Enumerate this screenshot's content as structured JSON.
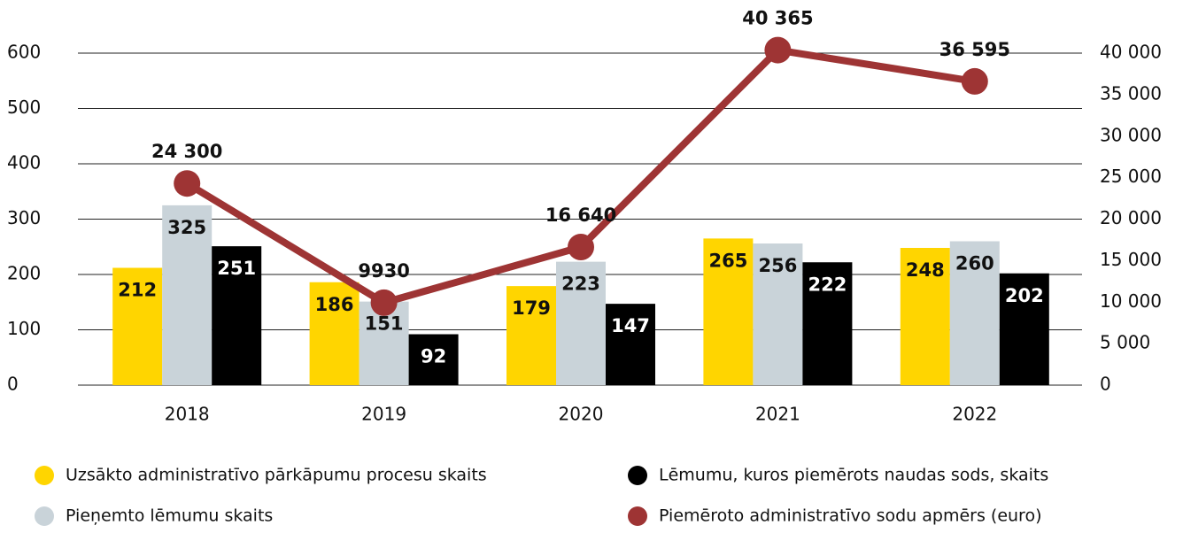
{
  "chart_data": {
    "type": "bar",
    "categories": [
      "2018",
      "2019",
      "2020",
      "2021",
      "2022"
    ],
    "series": [
      {
        "name": "Uzsākto administratīvo pārkāpumu procesu skaits",
        "color": "#ffd500",
        "type": "bar",
        "values": [
          212,
          186,
          179,
          265,
          248
        ]
      },
      {
        "name": "Pieņemto lēmumu skaits",
        "color": "#c9d3d9",
        "type": "bar",
        "values": [
          325,
          151,
          223,
          256,
          260
        ]
      },
      {
        "name": "Lēmumu, kuros piemērots naudas sods, skaits",
        "color": "#000000",
        "type": "bar",
        "values": [
          251,
          92,
          147,
          222,
          202
        ]
      },
      {
        "name": "Piemēroto administratīvo sodu apmērs (euro)",
        "color": "#9e3434",
        "type": "line",
        "axis": "y2",
        "values": [
          24300,
          9930,
          16640,
          40365,
          36595
        ],
        "value_labels": [
          "24 300",
          "9930",
          "16 640",
          "40 365",
          "36 595"
        ]
      }
    ],
    "ylim": [
      0,
      600
    ],
    "yticks": [
      0,
      100,
      200,
      300,
      400,
      500,
      600
    ],
    "y2lim": [
      0,
      40000
    ],
    "y2ticks": [
      0,
      {
        "value": 5000,
        "label": "5 000"
      },
      {
        "value": 10000,
        "label": "10 000"
      },
      {
        "value": 15000,
        "label": "15 000"
      },
      {
        "value": 20000,
        "label": "20 000"
      },
      {
        "value": 25000,
        "label": "25 000"
      },
      {
        "value": 30000,
        "label": "30 000"
      },
      {
        "value": 35000,
        "label": "35 000"
      },
      {
        "value": 40000,
        "label": "40 000"
      }
    ],
    "grid": true
  }
}
